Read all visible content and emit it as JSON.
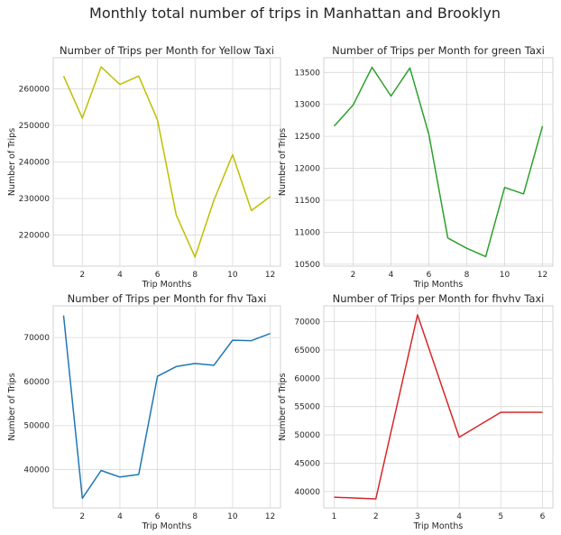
{
  "figure_title": "Monthly total number of trips in Manhattan and Brooklyn",
  "chart_data": [
    {
      "type": "line",
      "title": "Number of Trips per Month for Yellow Taxi",
      "xlabel": "Trip Months",
      "ylabel": "Number of Trips",
      "color": "#bfbf00",
      "x": [
        1,
        2,
        3,
        4,
        5,
        6,
        7,
        8,
        9,
        10,
        11,
        12
      ],
      "values": [
        263500,
        252000,
        266000,
        261200,
        263500,
        251500,
        225500,
        214000,
        229500,
        242000,
        226700,
        230500
      ],
      "xlim": [
        0.45,
        12.55
      ],
      "ylim": [
        211500,
        268500
      ],
      "xticks": [
        2,
        4,
        6,
        8,
        10,
        12
      ],
      "yticks": [
        220000,
        230000,
        240000,
        250000,
        260000
      ],
      "grid": true
    },
    {
      "type": "line",
      "title": "Number of Trips per Month for green Taxi",
      "xlabel": "Trip Months",
      "ylabel": "Number of Trips",
      "color": "#2ca02c",
      "x": [
        1,
        2,
        3,
        4,
        5,
        6,
        7,
        8,
        9,
        10,
        11,
        12
      ],
      "values": [
        12660,
        12990,
        13580,
        13130,
        13570,
        12530,
        10910,
        10750,
        10620,
        11700,
        11600,
        12660
      ],
      "xlim": [
        0.45,
        12.55
      ],
      "ylim": [
        10470,
        13730
      ],
      "xticks": [
        2,
        4,
        6,
        8,
        10,
        12
      ],
      "yticks": [
        10500,
        11000,
        11500,
        12000,
        12500,
        13000,
        13500
      ],
      "grid": true
    },
    {
      "type": "line",
      "title": "Number of Trips per Month for fhv Taxi",
      "xlabel": "Trip Months",
      "ylabel": "Number of Trips",
      "color": "#1f77b4",
      "x": [
        1,
        2,
        3,
        4,
        5,
        6,
        7,
        8,
        9,
        10,
        11,
        12
      ],
      "values": [
        75000,
        33500,
        39800,
        38300,
        38900,
        61200,
        63400,
        64100,
        63700,
        69400,
        69300,
        70900
      ],
      "xlim": [
        0.45,
        12.55
      ],
      "ylim": [
        31300,
        77200
      ],
      "xticks": [
        2,
        4,
        6,
        8,
        10,
        12
      ],
      "yticks": [
        40000,
        50000,
        60000,
        70000
      ],
      "grid": true
    },
    {
      "type": "line",
      "title": "Number of Trips per Month for fhvhv Taxi",
      "xlabel": "Trip Months",
      "ylabel": "Number of Trips",
      "color": "#d62728",
      "x": [
        1,
        2,
        3,
        4,
        5,
        6
      ],
      "values": [
        39000,
        38700,
        71200,
        49600,
        54000,
        54000
      ],
      "xlim": [
        0.75,
        6.25
      ],
      "ylim": [
        37100,
        72800
      ],
      "xticks": [
        1,
        2,
        3,
        4,
        5,
        6
      ],
      "yticks": [
        40000,
        45000,
        50000,
        55000,
        60000,
        65000,
        70000
      ],
      "grid": true
    }
  ]
}
